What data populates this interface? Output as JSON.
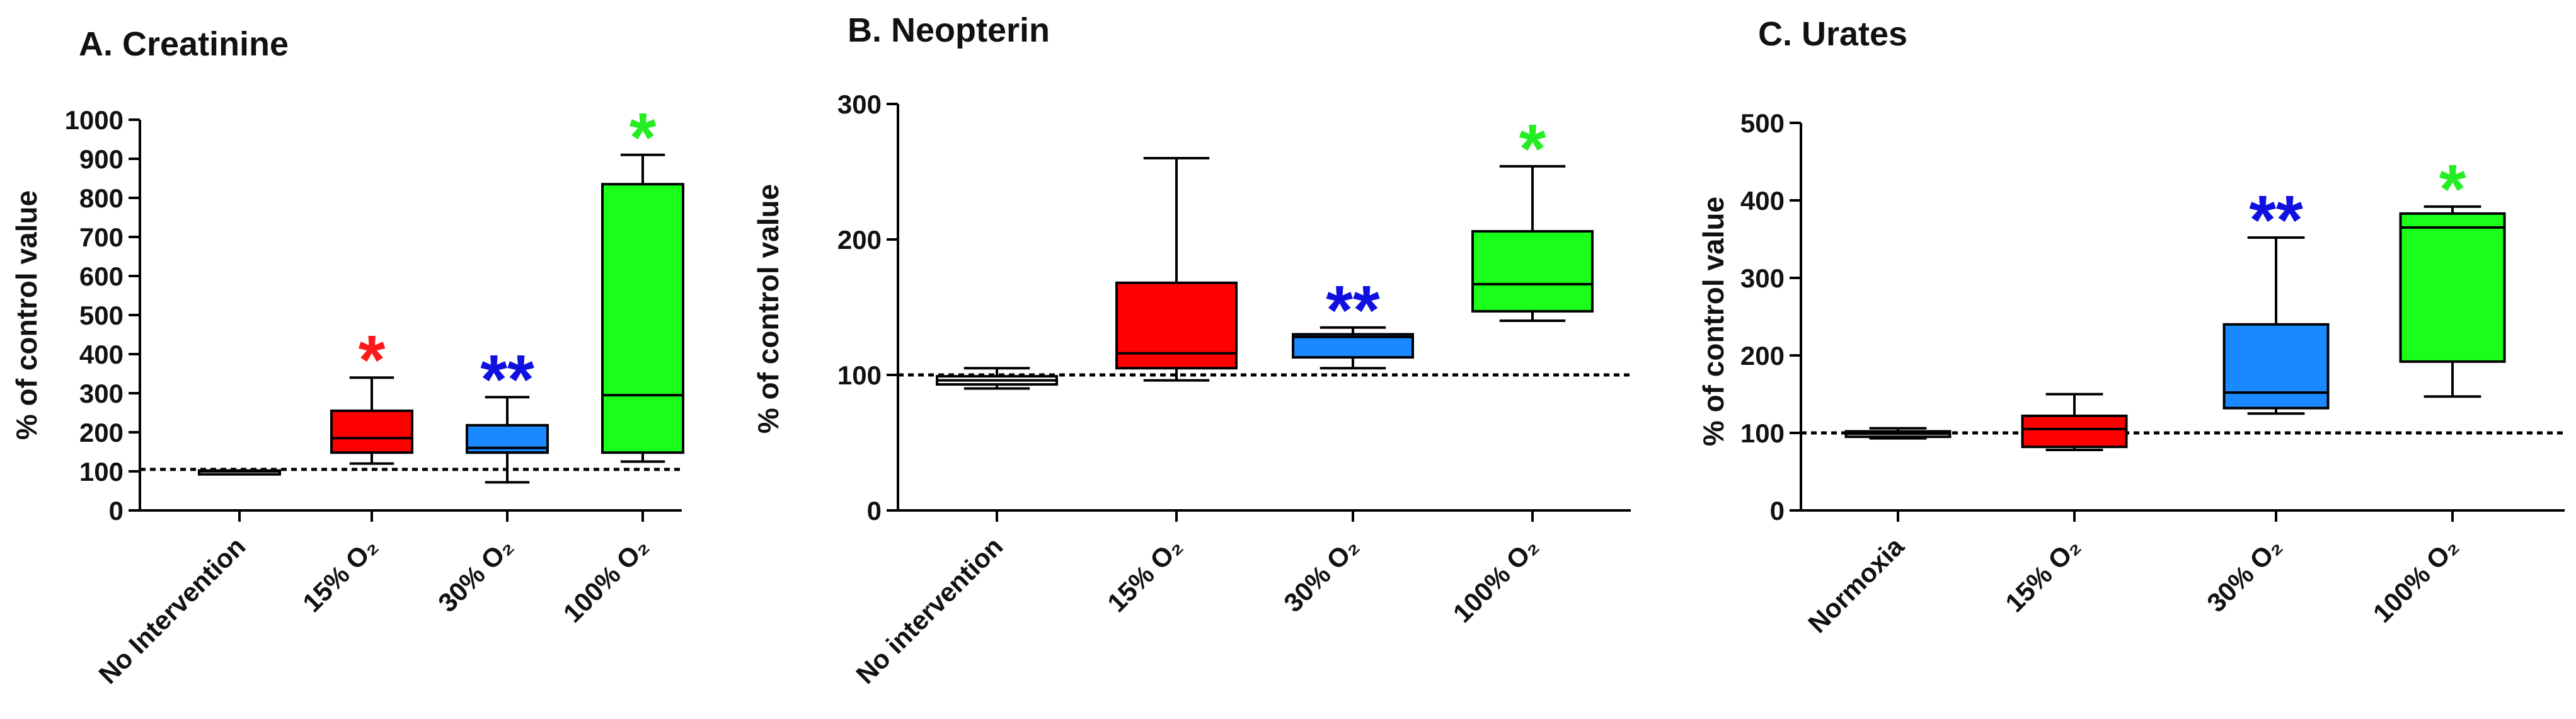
{
  "chart_data": [
    {
      "type": "boxplot",
      "title": "A. Creatinine",
      "ylabel": "% of control value",
      "ylim": [
        0,
        1000
      ],
      "yticks": [
        0,
        100,
        200,
        300,
        400,
        500,
        600,
        700,
        800,
        900,
        1000
      ],
      "reference_line": 105,
      "categories": [
        {
          "label": "No Intervention",
          "color": "#ffffff",
          "min": 95,
          "q1": 95,
          "median": 100,
          "q3": 102,
          "max": 102,
          "sig": ""
        },
        {
          "label": "15% O₂",
          "color": "#ff0000",
          "min": 120,
          "q1": 148,
          "median": 185,
          "q3": 255,
          "max": 340,
          "sig": "*",
          "sig_color": "#ff1a1a"
        },
        {
          "label": "30% O₂",
          "color": "#1a88ff",
          "min": 72,
          "q1": 148,
          "median": 160,
          "q3": 218,
          "max": 290,
          "sig": "**",
          "sig_color": "#1010e0"
        },
        {
          "label": "100% O₂",
          "color": "#1aff1a",
          "min": 125,
          "q1": 148,
          "median": 295,
          "q3": 835,
          "max": 910,
          "sig": "*",
          "sig_color": "#22ee22"
        }
      ]
    },
    {
      "type": "boxplot",
      "title": "B. Neopterin",
      "ylabel": "% of control value",
      "ylim": [
        0,
        300
      ],
      "yticks": [
        0,
        100,
        200,
        300
      ],
      "reference_line": 100,
      "categories": [
        {
          "label": "No intervention",
          "color": "#ffffff",
          "min": 90,
          "q1": 93,
          "median": 96,
          "q3": 99,
          "max": 105,
          "sig": ""
        },
        {
          "label": "15% O₂",
          "color": "#ff0000",
          "min": 96,
          "q1": 105,
          "median": 116,
          "q3": 168,
          "max": 260,
          "sig": ""
        },
        {
          "label": "30% O₂",
          "color": "#1a88ff",
          "min": 105,
          "q1": 113,
          "median": 128,
          "q3": 130,
          "max": 135,
          "sig": "**",
          "sig_color": "#1010e0"
        },
        {
          "label": "100% O₂",
          "color": "#1aff1a",
          "min": 140,
          "q1": 147,
          "median": 167,
          "q3": 206,
          "max": 254,
          "sig": "*",
          "sig_color": "#22ee22"
        }
      ]
    },
    {
      "type": "boxplot",
      "title": "C. Urates",
      "ylabel": "% of control value",
      "ylim": [
        0,
        500
      ],
      "yticks": [
        0,
        100,
        200,
        300,
        400,
        500
      ],
      "reference_line": 100,
      "categories": [
        {
          "label": "Normoxia",
          "color": "#ffffff",
          "min": 93,
          "q1": 95,
          "median": 99,
          "q3": 102,
          "max": 106,
          "sig": ""
        },
        {
          "label": "15% O₂",
          "color": "#ff0000",
          "min": 78,
          "q1": 82,
          "median": 105,
          "q3": 122,
          "max": 150,
          "sig": ""
        },
        {
          "label": "30% O₂",
          "color": "#1a88ff",
          "min": 125,
          "q1": 132,
          "median": 152,
          "q3": 240,
          "max": 352,
          "sig": "**",
          "sig_color": "#1010e0"
        },
        {
          "label": "100% O₂",
          "color": "#1aff1a",
          "min": 147,
          "q1": 192,
          "median": 365,
          "q3": 383,
          "max": 392,
          "sig": "*",
          "sig_color": "#22ee22"
        }
      ]
    }
  ]
}
